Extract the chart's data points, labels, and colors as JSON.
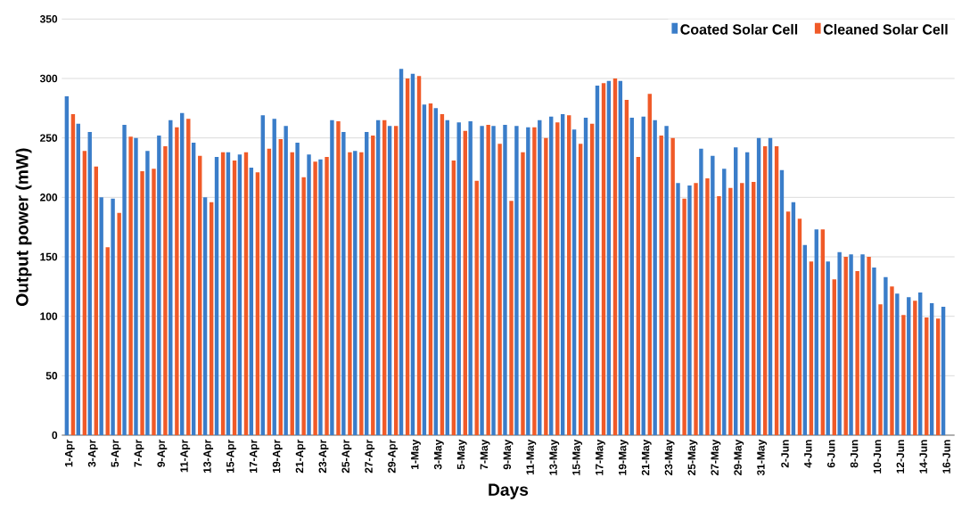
{
  "chart_data": {
    "type": "bar",
    "xlabel": "Days",
    "ylabel": "Output power (mW)",
    "categories": [
      "1-Apr",
      null,
      "3-Apr",
      null,
      "5-Apr",
      null,
      "7-Apr",
      null,
      "9-Apr",
      null,
      "11-Apr",
      null,
      "13-Apr",
      null,
      "15-Apr",
      null,
      "17-Apr",
      null,
      "19-Apr",
      null,
      "21-Apr",
      null,
      "23-Apr",
      null,
      "25-Apr",
      null,
      "27-Apr",
      null,
      "29-Apr",
      null,
      "1-May",
      null,
      "3-May",
      null,
      "5-May",
      null,
      "7-May",
      null,
      "9-May",
      null,
      "11-May",
      null,
      "13-May",
      null,
      "15-May",
      null,
      "17-May",
      null,
      "19-May",
      null,
      "21-May",
      null,
      "23-May",
      null,
      "25-May",
      null,
      "27-May",
      null,
      "29-May",
      null,
      "31-May",
      null,
      "2-Jun",
      null,
      "4-Jun",
      null,
      "6-Jun",
      null,
      "8-Jun",
      null,
      "10-Jun",
      null,
      "12-Jun",
      null,
      "14-Jun",
      null,
      "16-Jun"
    ],
    "series": [
      {
        "name": "Coated Solar Cell",
        "color": "#3a7dc9",
        "values": [
          285,
          262,
          255,
          200,
          199,
          261,
          250,
          239,
          252,
          265,
          271,
          246,
          200,
          234,
          238,
          236,
          225,
          269,
          266,
          260,
          246,
          236,
          232,
          265,
          255,
          239,
          255,
          265,
          260,
          308,
          304,
          278,
          275,
          265,
          263,
          264,
          260,
          260,
          261,
          260,
          259,
          265,
          268,
          270,
          257,
          267,
          294,
          298,
          298,
          267,
          268,
          265,
          260,
          212,
          210,
          241,
          235,
          224,
          242,
          238,
          250,
          250,
          223,
          196,
          160,
          173,
          146,
          154,
          152,
          152,
          141,
          133,
          119,
          116,
          120,
          111,
          108
        ]
      },
      {
        "name": "Cleaned Solar Cell",
        "color": "#f05a28",
        "values": [
          270,
          239,
          226,
          158,
          187,
          251,
          222,
          224,
          243,
          259,
          266,
          235,
          196,
          238,
          231,
          238,
          221,
          241,
          249,
          238,
          217,
          230,
          234,
          264,
          238,
          238,
          252,
          265,
          260,
          300,
          302,
          279,
          270,
          231,
          256,
          214,
          261,
          245,
          197,
          238,
          259,
          250,
          263,
          269,
          245,
          262,
          296,
          300,
          282,
          234,
          287,
          252,
          250,
          199,
          212,
          216,
          201,
          208,
          212,
          213,
          243,
          243,
          188,
          182,
          146,
          173,
          131,
          150,
          138,
          150,
          110,
          125,
          101,
          113,
          99,
          98,
          null
        ]
      }
    ],
    "ylim": [
      0,
      350
    ],
    "yticks": [
      0,
      50,
      100,
      150,
      200,
      250,
      300,
      350
    ],
    "grid": "y",
    "legend": "top right"
  }
}
